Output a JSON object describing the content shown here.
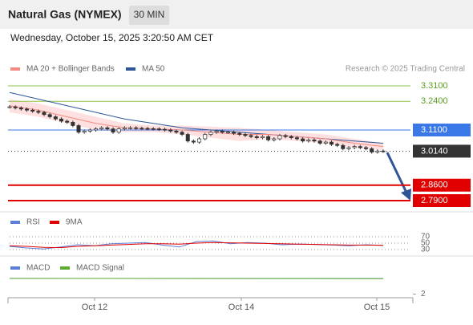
{
  "header": {
    "title": "Natural Gas (NYMEX)",
    "interval": "30 MIN",
    "timestamp": "Wednesday, October 15, 2025 3:20:50 AM CET"
  },
  "chart_data": [
    {
      "type": "candlestick",
      "legend": [
        {
          "name": "MA 20 + Bollinger Bands",
          "color": "#f28b82"
        },
        {
          "name": "MA 50",
          "color": "#2e5597"
        }
      ],
      "credit": "Research © 2025 Trading Central",
      "ylim": [
        2.75,
        3.43
      ],
      "close": [
        3.215,
        3.21,
        3.205,
        3.2,
        3.195,
        3.19,
        3.18,
        3.17,
        3.16,
        3.15,
        3.145,
        3.13,
        3.1,
        3.105,
        3.11,
        3.115,
        3.12,
        3.115,
        3.1,
        3.115,
        3.12,
        3.12,
        3.118,
        3.117,
        3.116,
        3.115,
        3.113,
        3.11,
        3.105,
        3.1,
        3.09,
        3.06,
        3.055,
        3.07,
        3.09,
        3.1,
        3.105,
        3.1,
        3.1,
        3.095,
        3.09,
        3.085,
        3.08,
        3.075,
        3.08,
        3.065,
        3.07,
        3.085,
        3.08,
        3.075,
        3.07,
        3.06,
        3.065,
        3.06,
        3.05,
        3.055,
        3.045,
        3.04,
        3.025,
        3.03,
        3.035,
        3.03,
        3.025,
        3.01,
        3.015,
        3.014
      ],
      "ma50": [
        3.28,
        3.25,
        3.22,
        3.19,
        3.16,
        3.14,
        3.12,
        3.11,
        3.1,
        3.09,
        3.08,
        3.07,
        3.06,
        3.05
      ],
      "ma20": [
        3.22,
        3.2,
        3.17,
        3.14,
        3.12,
        3.115,
        3.11,
        3.1,
        3.09,
        3.09,
        3.08,
        3.07,
        3.05,
        3.035
      ],
      "bb_upper": [
        3.25,
        3.23,
        3.2,
        3.17,
        3.14,
        3.13,
        3.13,
        3.125,
        3.12,
        3.11,
        3.1,
        3.09,
        3.07,
        3.05
      ],
      "bb_lower": [
        3.19,
        3.17,
        3.14,
        3.11,
        3.1,
        3.1,
        3.09,
        3.075,
        3.06,
        3.07,
        3.06,
        3.05,
        3.03,
        3.02
      ],
      "levels": [
        {
          "value": 3.31,
          "label": "3.3100",
          "color": "#8bc34a",
          "style": "text"
        },
        {
          "value": 3.24,
          "label": "3.2400",
          "color": "#8bc34a",
          "style": "text"
        },
        {
          "value": 3.11,
          "label": "3.1100",
          "color": "#3b78e7",
          "style": "box"
        },
        {
          "value": 3.014,
          "label": "3.0140",
          "color": "#333333",
          "style": "dotted"
        },
        {
          "value": 2.86,
          "label": "2.8600",
          "color": "#e00000",
          "style": "box"
        },
        {
          "value": 2.79,
          "label": "2.7900",
          "color": "#e00000",
          "style": "box"
        }
      ]
    },
    {
      "type": "line",
      "ylim": [
        0,
        100
      ],
      "yticks": [
        70,
        50,
        30
      ],
      "series": [
        {
          "name": "RSI",
          "color": "#5b7fd6",
          "values": [
            40,
            35,
            32,
            38,
            45,
            42,
            48,
            50,
            52,
            44,
            38,
            55,
            57,
            48,
            52,
            50,
            45,
            47,
            46,
            44,
            42,
            45,
            43
          ]
        },
        {
          "name": "9MA",
          "color": "#e00000",
          "values": [
            42,
            40,
            37,
            36,
            40,
            42,
            44,
            46,
            48,
            48,
            47,
            50,
            52,
            51,
            50,
            49,
            48,
            47,
            46,
            45,
            44,
            44,
            43
          ]
        }
      ]
    },
    {
      "type": "line",
      "ylim": [
        1.5,
        6
      ],
      "yticks": [
        2
      ],
      "series": [
        {
          "name": "MACD",
          "color": "#5b7fd6",
          "values": [
            4.15,
            4.14,
            4.13,
            4.12,
            4.12
          ]
        },
        {
          "name": "MACD Signal",
          "color": "#5aad2e",
          "values": [
            4.13,
            4.13,
            4.12,
            4.12,
            4.11
          ]
        }
      ]
    }
  ],
  "x_labels": [
    "Oct 12",
    "Oct 14",
    "Oct 15"
  ]
}
